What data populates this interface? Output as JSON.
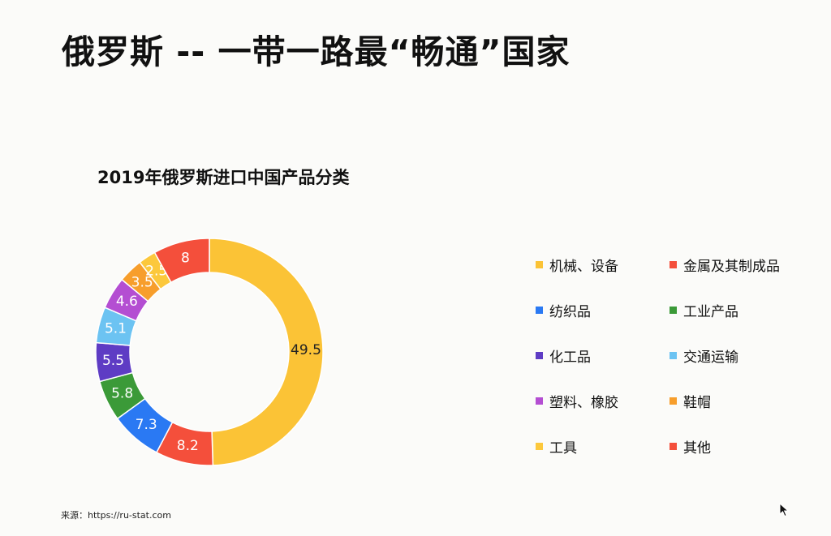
{
  "slide": {
    "title": "俄罗斯 -- 一带一路最“畅通”国家",
    "source": "来源：https://ru-stat.com"
  },
  "chart_data": {
    "type": "pie",
    "donut": true,
    "title": "2019年俄罗斯进口中国产品分类",
    "legend_position": "right",
    "series": [
      {
        "name": "机械、设备",
        "value": 49.5,
        "color": "#fbc336"
      },
      {
        "name": "金属及其制成品",
        "value": 8.2,
        "color": "#f44f3b"
      },
      {
        "name": "纺织品",
        "value": 7.3,
        "color": "#2a79f3"
      },
      {
        "name": "工业产品",
        "value": 5.8,
        "color": "#3b9a38"
      },
      {
        "name": "化工品",
        "value": 5.5,
        "color": "#5e3cc4"
      },
      {
        "name": "交通运输",
        "value": 5.1,
        "color": "#6cc3f2"
      },
      {
        "name": "塑料、橡胶",
        "value": 4.6,
        "color": "#b44ed2"
      },
      {
        "name": "鞋帽",
        "value": 3.5,
        "color": "#f79e2c"
      },
      {
        "name": "工具",
        "value": 2.5,
        "color": "#fcc83c"
      },
      {
        "name": "其他",
        "value": 8,
        "color": "#f44f3b"
      }
    ],
    "data_labels": [
      "49.5",
      "8.2",
      "7.3",
      "5.8",
      "5.5",
      "5.1",
      "4.6",
      "3.5",
      "2.5",
      "8"
    ]
  }
}
